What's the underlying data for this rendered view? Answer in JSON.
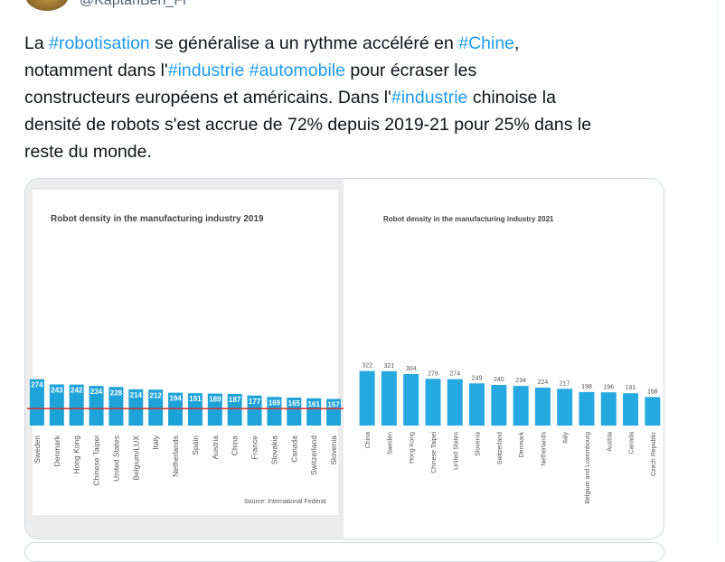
{
  "tweet": {
    "handle": "@KaptanBen_Fr",
    "lines": [
      [
        {
          "text": "La "
        },
        {
          "text": "#robotisation",
          "hashtag": true
        },
        {
          "text": " se généralise a un rythme accéléré en "
        },
        {
          "text": "#Chine",
          "hashtag": true
        },
        {
          "text": ","
        }
      ],
      [
        {
          "text": "notamment dans l'"
        },
        {
          "text": "#industrie",
          "hashtag": true
        },
        {
          "text": " "
        },
        {
          "text": "#automobile",
          "hashtag": true
        },
        {
          "text": " pour écraser les"
        }
      ],
      [
        {
          "text": "constructeurs européens et américains. Dans l'"
        },
        {
          "text": "#industrie",
          "hashtag": true
        },
        {
          "text": " chinoise la"
        }
      ],
      [
        {
          "text": "densité de robots s'est accrue de 72% depuis 2019-21 pour 25% dans le"
        }
      ],
      [
        {
          "text": "reste du monde."
        }
      ]
    ]
  },
  "chart_data": [
    {
      "type": "bar",
      "title": "Robot density in the manufacturing industry 2019",
      "categories": [
        "Sweden",
        "Denmark",
        "Hong Kong",
        "Chinese Taipei",
        "United States",
        "Belgium/LUX",
        "Italy",
        "Netherlands",
        "Spain",
        "Austria",
        "China",
        "France",
        "Slovakia",
        "Canada",
        "Switzerland",
        "Slovenia"
      ],
      "values": [
        274,
        243,
        242,
        234,
        228,
        214,
        212,
        194,
        191,
        189,
        187,
        177,
        169,
        165,
        161,
        157
      ],
      "color": "#1ea3d8",
      "ylim": [
        0,
        400
      ],
      "reference_line": 100,
      "reference_color": "#d2302c",
      "source": "Source: International Federat"
    },
    {
      "type": "bar",
      "title": "Robot density in the manufacturing industry 2021",
      "categories": [
        "China",
        "Sweden",
        "Hong Kong",
        "Chinese Taipei",
        "United States",
        "Slovenia",
        "Switzerland",
        "Denmark",
        "Netherlands",
        "Italy",
        "Belgium and Luxembourg",
        "Austria",
        "Canada",
        "Czech Republic"
      ],
      "values": [
        322,
        321,
        304,
        276,
        274,
        249,
        240,
        234,
        224,
        217,
        198,
        196,
        191,
        168
      ],
      "color": "#25a9e0",
      "ylim": [
        0,
        400
      ]
    }
  ]
}
